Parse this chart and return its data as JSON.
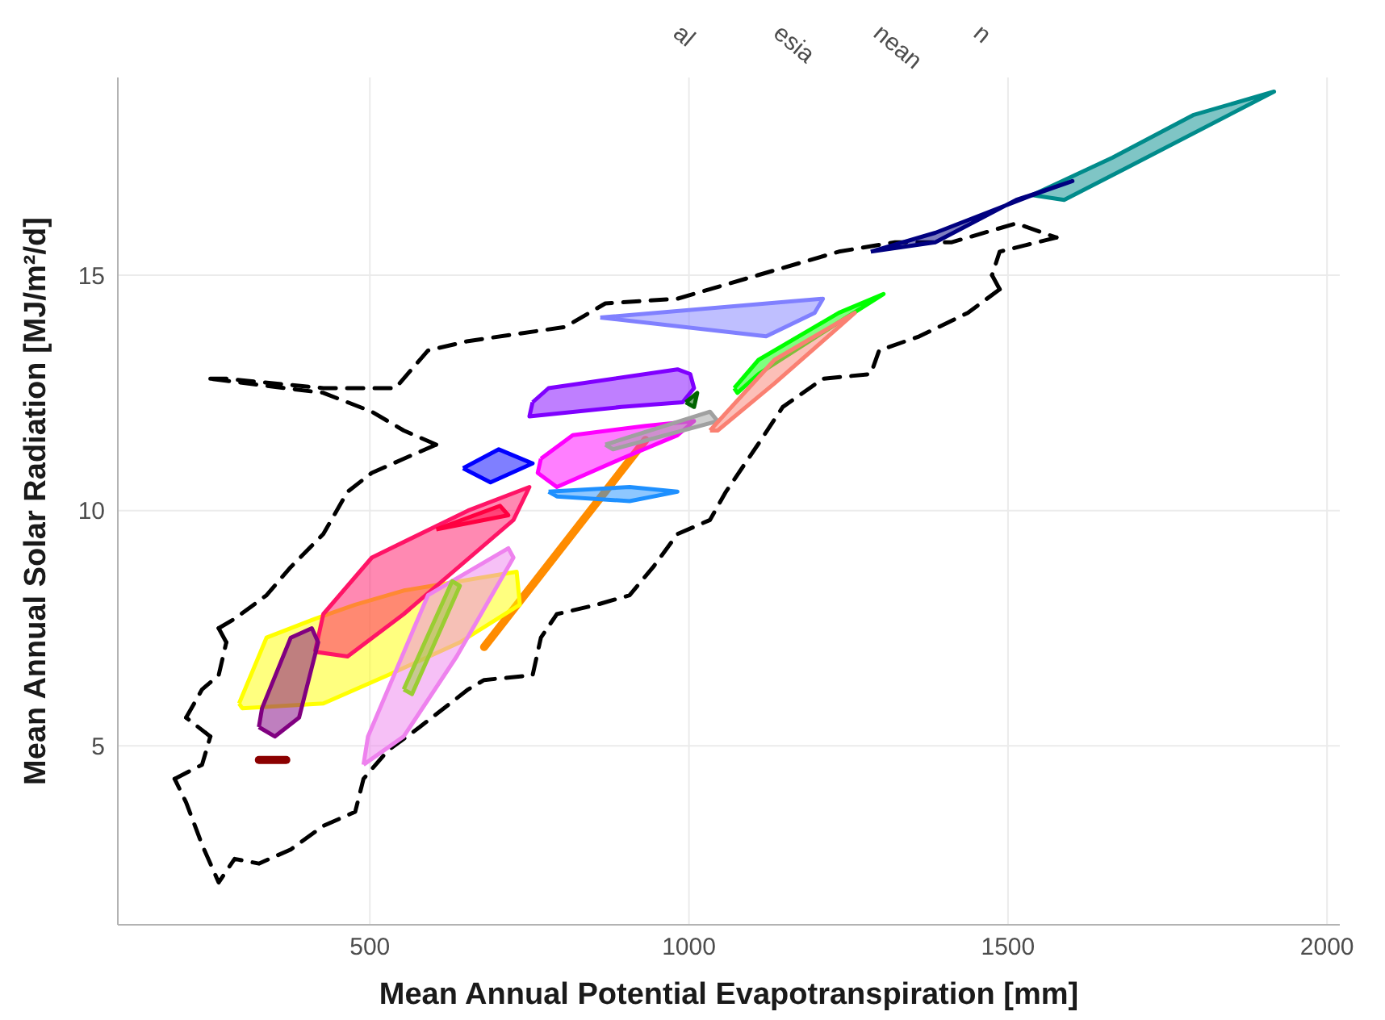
{
  "chart_data": {
    "type": "scatter",
    "xlabel": "Mean Annual Potential Evapotranspiration [mm]",
    "ylabel": "Mean Annual Solar Radiation [MJ/m²/d]",
    "xlim": [
      105,
      2020
    ],
    "ylim": [
      1.2,
      19.2
    ],
    "xticks": [
      500,
      1000,
      1500,
      2000
    ],
    "yticks": [
      5,
      10,
      15
    ],
    "grid": true,
    "marker": "none",
    "annotations": [
      "al",
      "esia",
      "nean",
      "n"
    ],
    "series": [
      {
        "type": "line",
        "line_style": "dashed",
        "color": "#000000",
        "x": [
          250,
          275,
          427,
          540,
          591,
          654,
          806,
          869,
          982,
          1108,
          1235,
          1323,
          1412,
          1513,
          1576
        ],
        "values": [
          12.8,
          12.8,
          12.6,
          12.6,
          13.4,
          13.6,
          13.9,
          14.4,
          14.5,
          15.0,
          15.5,
          15.7,
          15.7,
          16.1,
          15.8
        ]
      },
      {
        "type": "line",
        "line_style": "dashed",
        "color": "#000000",
        "x": [
          1576,
          1487,
          1475
        ],
        "values": [
          15.8,
          15.5,
          15.0
        ]
      },
      {
        "type": "line",
        "line_style": "dashed",
        "color": "#000000",
        "x": [
          1475,
          1487
        ],
        "values": [
          15.0,
          14.7
        ]
      },
      {
        "type": "line",
        "line_style": "dashed",
        "color": "#000000",
        "x": [
          1487,
          1437,
          1361,
          1298,
          1285,
          1210,
          1147,
          1108,
          1058,
          1033,
          982,
          944,
          907,
          856,
          793,
          768,
          755,
          679,
          654,
          578,
          528,
          490,
          477,
          427,
          376,
          326,
          288,
          263,
          237,
          212,
          194
        ],
        "values": [
          14.7,
          14.2,
          13.7,
          13.4,
          12.9,
          12.8,
          12.2,
          11.4,
          10.4,
          9.8,
          9.5,
          8.8,
          8.2,
          8.0,
          7.8,
          7.3,
          6.5,
          6.4,
          6.2,
          5.4,
          4.9,
          4.3,
          3.6,
          3.3,
          2.8,
          2.5,
          2.6,
          2.1,
          2.9,
          3.8,
          4.3
        ]
      },
      {
        "type": "line",
        "line_style": "dashed",
        "color": "#000000",
        "x": [
          194,
          237,
          250
        ],
        "values": [
          4.3,
          4.6,
          5.2
        ]
      },
      {
        "type": "line",
        "line_style": "dashed",
        "color": "#000000",
        "x": [
          250,
          212
        ],
        "values": [
          5.2,
          5.6
        ]
      },
      {
        "type": "line",
        "line_style": "dashed",
        "color": "#000000",
        "x": [
          212,
          237,
          263,
          275
        ],
        "values": [
          5.6,
          6.2,
          6.5,
          7.2
        ]
      },
      {
        "type": "line",
        "line_style": "dashed",
        "color": "#000000",
        "x": [
          275,
          263
        ],
        "values": [
          7.2,
          7.5
        ]
      },
      {
        "type": "line",
        "line_style": "dashed",
        "color": "#000000",
        "x": [
          263,
          288,
          338,
          376,
          427,
          465,
          503,
          553,
          604
        ],
        "values": [
          7.5,
          7.7,
          8.2,
          8.8,
          9.5,
          10.4,
          10.8,
          11.1,
          11.4
        ]
      },
      {
        "type": "line",
        "line_style": "dashed",
        "color": "#000000",
        "x": [
          604,
          553,
          503,
          427,
          250
        ],
        "values": [
          11.4,
          11.7,
          12.1,
          12.5,
          12.8
        ]
      },
      {
        "type": "area",
        "color": "#008b8b",
        "x": [
          1538,
          1664,
          1790,
          1917,
          1689,
          1588
        ],
        "values": [
          16.7,
          17.5,
          18.4,
          18.9,
          17.3,
          16.6
        ]
      },
      {
        "type": "area",
        "color": "#000080",
        "x": [
          1285,
          1386,
          1538,
          1601,
          1513,
          1386
        ],
        "values": [
          15.5,
          15.9,
          16.7,
          17.0,
          16.6,
          15.7
        ]
      },
      {
        "type": "area",
        "color": "#8080ff",
        "x": [
          861,
          1210,
          1197,
          1121
        ],
        "values": [
          14.1,
          14.5,
          14.2,
          13.7
        ]
      },
      {
        "type": "area",
        "color": "#7f00ff",
        "x": [
          755,
          780,
          982,
          1002,
          1008,
          990,
          894,
          750
        ],
        "values": [
          12.3,
          12.6,
          13.0,
          12.9,
          12.6,
          12.3,
          12.2,
          12.0
        ]
      },
      {
        "type": "area",
        "color": "#0000ff",
        "x": [
          646,
          702,
          755,
          689
        ],
        "values": [
          10.9,
          11.3,
          11.0,
          10.6
        ]
      },
      {
        "type": "area",
        "color": "#ff00ff",
        "x": [
          768,
          818,
          932,
          1008,
          982,
          894,
          793,
          763
        ],
        "values": [
          11.1,
          11.6,
          11.8,
          11.9,
          11.6,
          11.1,
          10.5,
          10.8
        ]
      },
      {
        "type": "area",
        "color": "#1e90ff",
        "x": [
          780,
          907,
          982,
          907,
          793
        ],
        "values": [
          10.4,
          10.5,
          10.4,
          10.2,
          10.3
        ]
      },
      {
        "type": "area",
        "color": "#a0a0a0",
        "x": [
          869,
          1033,
          1045,
          881
        ],
        "values": [
          11.4,
          12.1,
          11.9,
          11.3
        ]
      },
      {
        "type": "area",
        "color": "#00ff00",
        "x": [
          1071,
          1109,
          1235,
          1305,
          1235,
          1109,
          1076
        ],
        "values": [
          12.6,
          13.2,
          14.2,
          14.6,
          14.0,
          12.9,
          12.5
        ]
      },
      {
        "type": "area",
        "color": "#fa8072",
        "x": [
          1033,
          1134,
          1260,
          1235,
          1134,
          1045
        ],
        "values": [
          11.7,
          13.2,
          14.2,
          13.9,
          12.7,
          11.7
        ]
      },
      {
        "type": "area",
        "color": "#006400",
        "x": [
          995,
          1013,
          1008
        ],
        "values": [
          12.3,
          12.5,
          12.2
        ]
      },
      {
        "type": "area",
        "color": "#ffff00",
        "x": [
          295,
          338,
          414,
          477,
          553,
          730,
          735,
          641,
          528,
          427,
          300
        ],
        "values": [
          5.9,
          7.3,
          7.7,
          8.0,
          8.3,
          8.7,
          8.0,
          7.2,
          6.5,
          5.9,
          5.8
        ]
      },
      {
        "type": "area",
        "color": "#ff1466",
        "x": [
          414,
          427,
          503,
          654,
          750,
          725,
          553,
          465
        ],
        "values": [
          7.0,
          7.8,
          9.0,
          10.0,
          10.5,
          9.8,
          7.8,
          6.9
        ]
      },
      {
        "type": "area",
        "color": "#ff0040",
        "x": [
          604,
          704,
          717
        ],
        "values": [
          9.6,
          10.1,
          9.9
        ]
      },
      {
        "type": "area",
        "color": "#800080",
        "x": [
          326,
          331,
          376,
          409,
          419,
          389,
          351
        ],
        "values": [
          5.4,
          5.8,
          7.3,
          7.5,
          7.2,
          5.6,
          5.2
        ]
      },
      {
        "type": "line",
        "color": "#8b0000",
        "x": [
          326,
          369
        ],
        "values": [
          4.7,
          4.7
        ]
      },
      {
        "type": "area",
        "color": "#ee82ee",
        "x": [
          490,
          497,
          591,
          717,
          725,
          636,
          553
        ],
        "values": [
          4.6,
          5.2,
          8.2,
          9.2,
          9.0,
          6.9,
          5.2
        ]
      },
      {
        "type": "area",
        "color": "#9acd32",
        "x": [
          553,
          629,
          641,
          566
        ],
        "values": [
          6.2,
          8.5,
          8.4,
          6.1
        ]
      },
      {
        "type": "line",
        "color": "#ff8c00",
        "x": [
          679,
          932
        ],
        "values": [
          7.1,
          11.5
        ]
      }
    ]
  }
}
